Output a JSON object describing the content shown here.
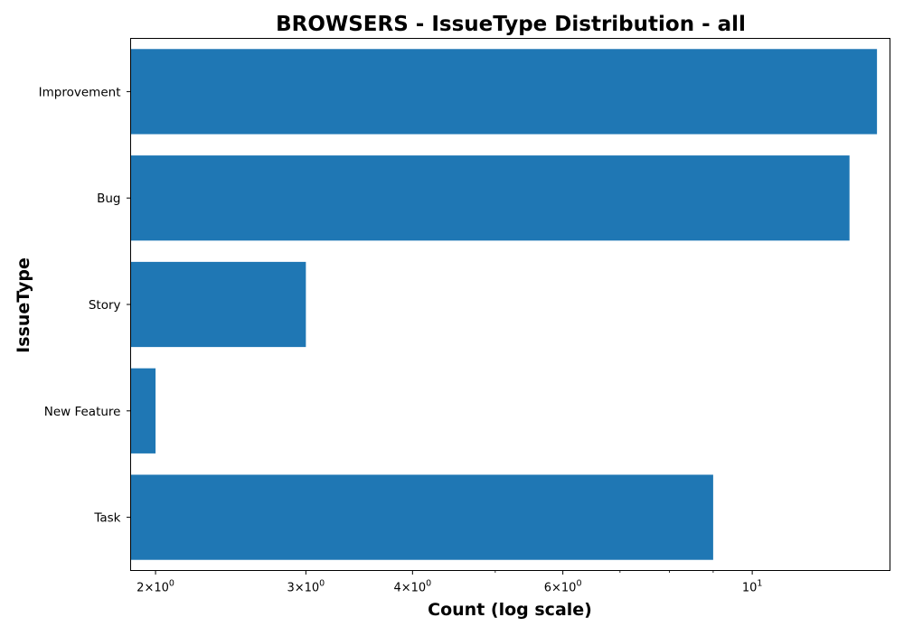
{
  "chart_data": {
    "type": "bar",
    "orientation": "horizontal",
    "title": "BROWSERS - IssueType Distribution - all",
    "xlabel": "Count (log scale)",
    "ylabel": "IssueType",
    "x_scale": "log",
    "xlim": [
      1.87,
      14.5
    ],
    "grid": false,
    "categories": [
      "Improvement",
      "Bug",
      "Story",
      "New Feature",
      "Task"
    ],
    "values": [
      14,
      13,
      3,
      2,
      9
    ],
    "bar_color": "#1f77b4",
    "x_ticks": [
      {
        "value": 2,
        "base": "2×10",
        "exp": "0"
      },
      {
        "value": 3,
        "base": "3×10",
        "exp": "0"
      },
      {
        "value": 4,
        "base": "4×10",
        "exp": "0"
      },
      {
        "value": 6,
        "base": "6×10",
        "exp": "0"
      },
      {
        "value": 10,
        "base": "10",
        "exp": "1"
      }
    ],
    "x_minor_ticks": [
      5,
      7,
      8,
      9
    ]
  }
}
